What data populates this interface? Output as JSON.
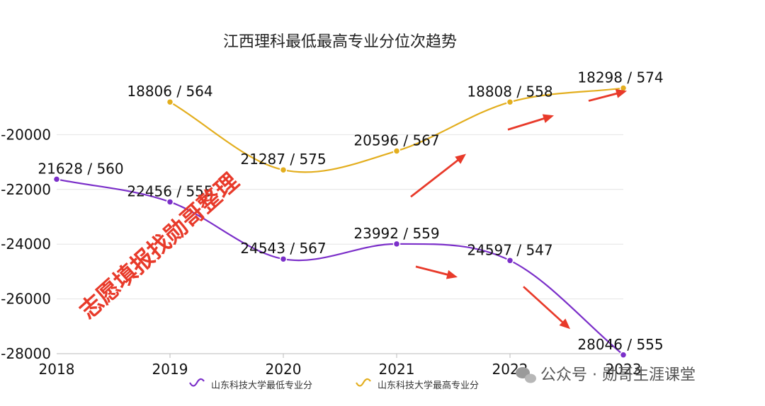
{
  "chart_data": {
    "type": "line",
    "title": "江西理科最低最高专业分位次趋势",
    "xlabel": "",
    "ylabel": "",
    "categories": [
      "2018",
      "2019",
      "2020",
      "2021",
      "2022",
      "2023"
    ],
    "ylim": [
      -28000,
      -18000
    ],
    "yticks": [
      -20000,
      -22000,
      -24000,
      -26000,
      -28000
    ],
    "ytick_labels": [
      "-20000",
      "-22000",
      "-24000",
      "-26000",
      "-28000"
    ],
    "grid": true,
    "legend_position": "bottom",
    "series": [
      {
        "name": "山东科技大学最低专业分",
        "color": "#7b2fc9",
        "values": [
          -21628,
          -22456,
          -24543,
          -23992,
          -24597,
          -28046
        ],
        "labels": [
          "21628 / 560",
          "22456 / 555",
          "24543 / 567",
          "23992 / 559",
          "24597 / 547",
          "28046 / 555"
        ]
      },
      {
        "name": "山东科技大学最高专业分",
        "color": "#e3ae1e",
        "values": [
          null,
          -18806,
          -21287,
          -20596,
          -18808,
          -18298
        ],
        "labels": [
          null,
          "18806 / 564",
          "21287 / 575",
          "20596 / 567",
          "18808 / 558",
          "18298 / 574"
        ]
      }
    ],
    "annotations": {
      "stamp_text": "志愿填报找勋哥整理",
      "stamp_color": "#e83a2a",
      "arrow_color": "#e83a2a"
    }
  },
  "watermark": {
    "text": "公众号 · 勋哥生涯课堂",
    "icon": "wechat-icon"
  }
}
